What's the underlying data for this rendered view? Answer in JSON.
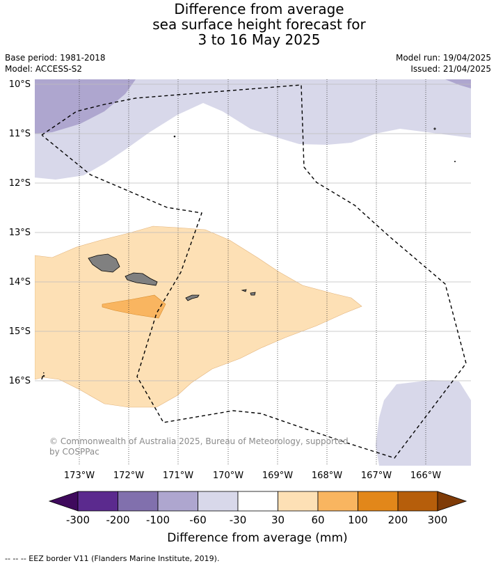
{
  "title": {
    "line1": "Difference from average",
    "line2": "sea surface height forecast for",
    "line3": "3 to 16 May 2025"
  },
  "meta": {
    "base_period": "Base period: 1981-2018",
    "model": "Model: ACCESS-S2",
    "model_run": "Model run: 19/04/2025",
    "issued": "Issued: 21/04/2025"
  },
  "map": {
    "lat_labels": [
      "10°S",
      "11°S",
      "12°S",
      "13°S",
      "14°S",
      "15°S",
      "16°S"
    ],
    "lon_labels": [
      "173°W",
      "172°W",
      "171°W",
      "170°W",
      "169°W",
      "168°W",
      "167°W",
      "166°W"
    ],
    "copyright_line1": "© Commonwealth of Australia 2025, Bureau of Meteorology, supported",
    "copyright_line2": "by COSPPac"
  },
  "colorbar": {
    "title": "Difference from average (mm)",
    "tick_labels": [
      "-300",
      "-200",
      "-100",
      "-60",
      "-30",
      "30",
      "60",
      "100",
      "200",
      "300"
    ],
    "colors": [
      "#3f0a5d",
      "#5b2a8e",
      "#8170ad",
      "#aea6cf",
      "#d8d8ea",
      "#ffffff",
      "#fde0b5",
      "#f9b560",
      "#e2871a",
      "#b65e0b",
      "#7f3b07"
    ]
  },
  "footer": {
    "legend_text": "--  --  -- EEZ border V11 (Flanders Marine Institute, 2019)."
  }
}
